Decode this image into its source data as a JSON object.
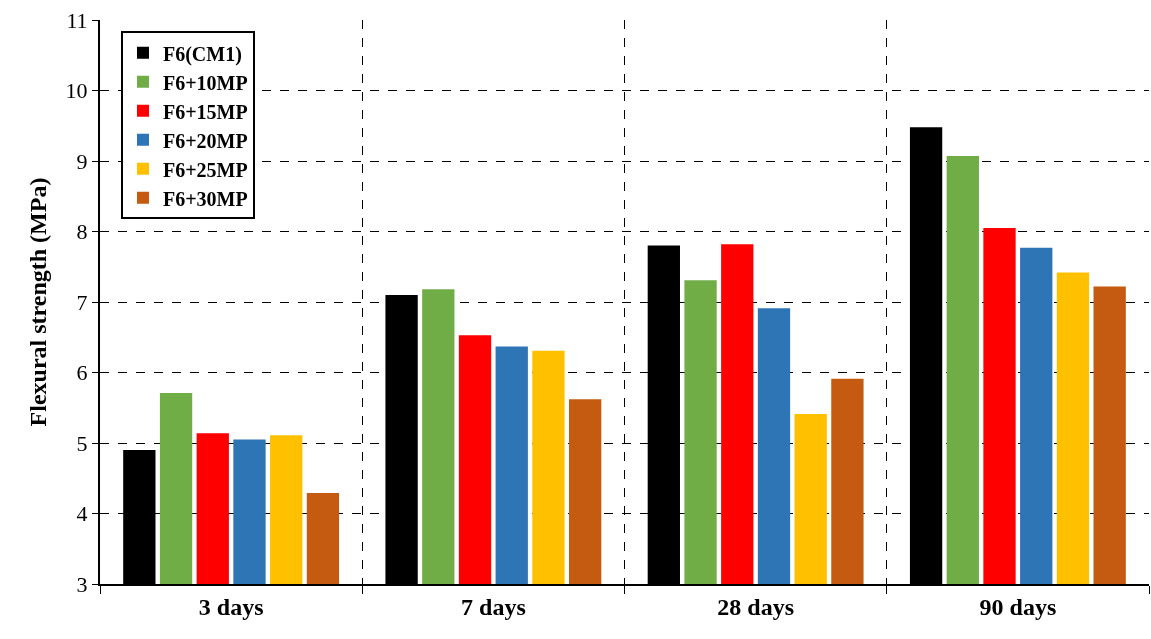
{
  "chart_data": {
    "type": "bar",
    "ylabel": "Flexural strength (MPa)",
    "categories": [
      "3 days",
      "7 days",
      "28 days",
      "90 days"
    ],
    "series": [
      {
        "name": "F6(CM1)",
        "color": "#000000",
        "values": [
          4.9,
          7.1,
          7.8,
          9.48
        ]
      },
      {
        "name": "F6+10MP",
        "color": "#70ad47",
        "values": [
          5.71,
          7.18,
          7.31,
          9.07
        ]
      },
      {
        "name": "F6+15MP",
        "color": "#ff0000",
        "values": [
          5.14,
          6.53,
          7.82,
          8.05
        ]
      },
      {
        "name": "F6+20MP",
        "color": "#2e75b6",
        "values": [
          5.05,
          6.37,
          6.91,
          7.77
        ]
      },
      {
        "name": "F6+25MP",
        "color": "#ffc000",
        "values": [
          5.11,
          6.31,
          5.41,
          7.42
        ]
      },
      {
        "name": "F6+30MP",
        "color": "#c55a11",
        "values": [
          4.29,
          5.62,
          5.91,
          7.22
        ]
      }
    ],
    "ylim": [
      3,
      11
    ],
    "yticks": [
      3,
      4,
      5,
      6,
      7,
      8,
      9,
      10,
      11
    ],
    "grid": true,
    "legend": "top left"
  }
}
